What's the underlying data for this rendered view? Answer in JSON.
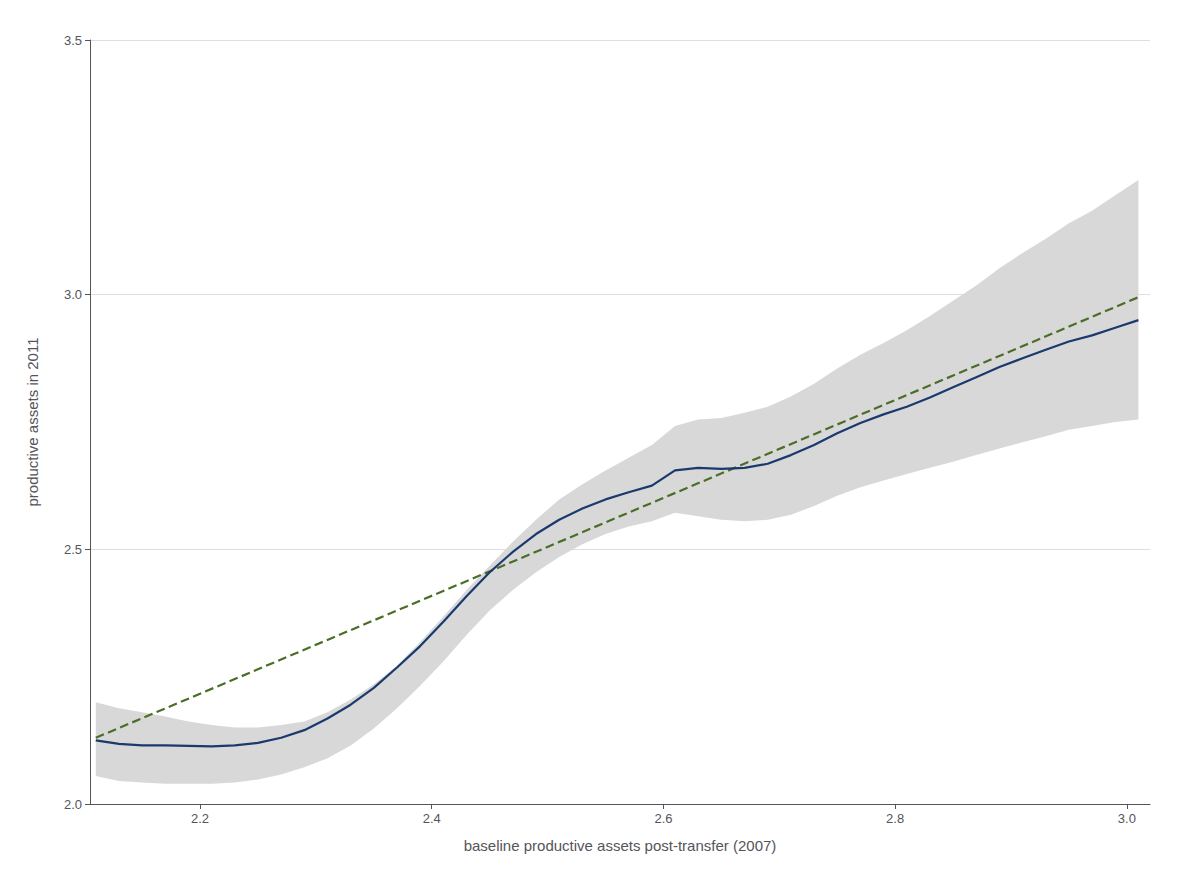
{
  "chart_data": {
    "type": "line",
    "xlabel": "baseline productive assets post-transfer (2007)",
    "ylabel": "productive assets in 2011",
    "xlim": [
      2.105,
      3.02
    ],
    "ylim": [
      2.0,
      3.5
    ],
    "xticks": [
      2.2,
      2.4,
      2.6,
      2.8,
      {
        "value": 3.0,
        "label": "3.0"
      }
    ],
    "yticks": [
      {
        "value": 2.0,
        "label": "2.0"
      },
      2.5,
      {
        "value": 3.0,
        "label": "3.0"
      },
      3.5
    ],
    "grid": "y",
    "x": [
      2.11,
      2.13,
      2.15,
      2.17,
      2.19,
      2.21,
      2.23,
      2.25,
      2.27,
      2.29,
      2.31,
      2.33,
      2.35,
      2.37,
      2.39,
      2.41,
      2.43,
      2.45,
      2.47,
      2.49,
      2.51,
      2.53,
      2.55,
      2.57,
      2.59,
      2.61,
      2.63,
      2.65,
      2.67,
      2.69,
      2.71,
      2.73,
      2.75,
      2.77,
      2.79,
      2.81,
      2.83,
      2.85,
      2.87,
      2.89,
      2.91,
      2.93,
      2.95,
      2.97,
      2.99,
      3.01
    ],
    "series": [
      {
        "type": "band",
        "color": "#d8d8d8",
        "lower": [
          2.055,
          2.045,
          2.042,
          2.04,
          2.04,
          2.04,
          2.042,
          2.048,
          2.058,
          2.072,
          2.09,
          2.115,
          2.148,
          2.188,
          2.232,
          2.28,
          2.332,
          2.38,
          2.42,
          2.455,
          2.485,
          2.51,
          2.53,
          2.545,
          2.555,
          2.572,
          2.565,
          2.558,
          2.555,
          2.558,
          2.568,
          2.585,
          2.605,
          2.622,
          2.635,
          2.648,
          2.66,
          2.672,
          2.685,
          2.698,
          2.71,
          2.722,
          2.735,
          2.742,
          2.75,
          2.755
        ],
        "upper": [
          2.2,
          2.188,
          2.18,
          2.172,
          2.162,
          2.155,
          2.15,
          2.15,
          2.155,
          2.162,
          2.18,
          2.205,
          2.235,
          2.272,
          2.318,
          2.368,
          2.42,
          2.468,
          2.515,
          2.558,
          2.598,
          2.628,
          2.655,
          2.68,
          2.705,
          2.742,
          2.755,
          2.758,
          2.768,
          2.78,
          2.8,
          2.825,
          2.855,
          2.882,
          2.905,
          2.93,
          2.958,
          2.988,
          3.018,
          3.052,
          3.082,
          3.11,
          3.14,
          3.165,
          3.195,
          3.225
        ]
      },
      {
        "type": "line",
        "color": "#4a6e28",
        "line_style": "dashed",
        "x": [
          2.11,
          3.01
        ],
        "values": [
          2.13,
          2.995
        ]
      },
      {
        "type": "line",
        "color": "#1a3a6e",
        "line_style": "solid",
        "values": [
          2.125,
          2.118,
          2.115,
          2.115,
          2.114,
          2.113,
          2.115,
          2.12,
          2.13,
          2.145,
          2.168,
          2.195,
          2.228,
          2.268,
          2.31,
          2.358,
          2.408,
          2.455,
          2.495,
          2.53,
          2.558,
          2.58,
          2.598,
          2.612,
          2.625,
          2.655,
          2.66,
          2.658,
          2.66,
          2.668,
          2.685,
          2.705,
          2.728,
          2.748,
          2.765,
          2.78,
          2.798,
          2.818,
          2.838,
          2.858,
          2.875,
          2.892,
          2.908,
          2.92,
          2.935,
          2.95
        ]
      }
    ]
  }
}
